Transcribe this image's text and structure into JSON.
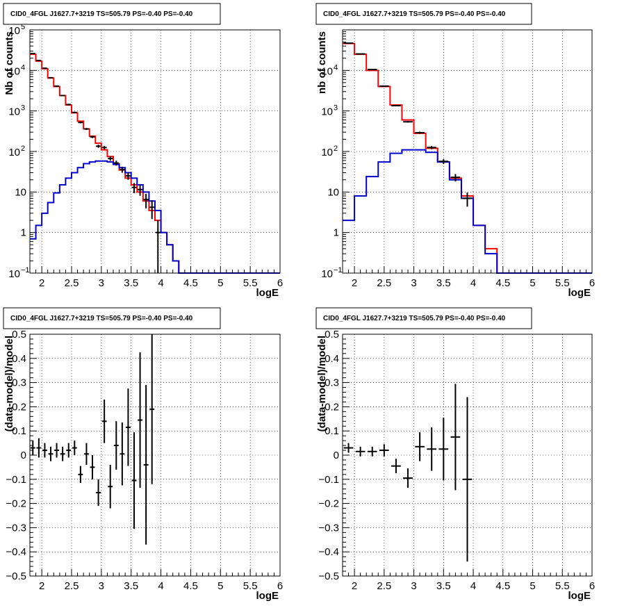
{
  "chart_data": [
    {
      "type": "line",
      "title": "CID0_4FGL J1627.7+3219 TS=505.79 PS=-0.40 PS=-0.40",
      "xlabel": "logE",
      "ylabel": "Nb of counts",
      "log_y": true,
      "xlim": [
        1.8,
        6.0
      ],
      "ylim": [
        0.1,
        100000
      ],
      "x_ticks": [
        "2",
        "2.5",
        "3",
        "3.5",
        "4",
        "4.5",
        "5",
        "5.5",
        "6"
      ],
      "y_ticks": [
        "10^-1",
        "1",
        "10",
        "10^2",
        "10^3",
        "10^4",
        "10^5"
      ],
      "grid": true,
      "bin_edges": [
        1.8,
        1.9,
        2.0,
        2.1,
        2.2,
        2.3,
        2.4,
        2.5,
        2.6,
        2.7,
        2.8,
        2.9,
        3.0,
        3.1,
        3.2,
        3.3,
        3.4,
        3.5,
        3.6,
        3.7,
        3.8,
        3.9,
        4.0,
        4.1,
        4.2,
        4.3,
        4.4,
        6.0
      ],
      "series": [
        {
          "color": "#ff0000",
          "style": "step",
          "values": [
            25000,
            17000,
            11000,
            6500,
            4000,
            2400,
            1400,
            900,
            560,
            360,
            240,
            160,
            110,
            75,
            50,
            35,
            22,
            15,
            10,
            6,
            3.5,
            2,
            1,
            0.5,
            0.2,
            0.1,
            0.1
          ]
        },
        {
          "color": "#0000cc",
          "style": "step",
          "values": [
            0.7,
            1.5,
            3,
            5.5,
            9.5,
            15,
            22,
            30,
            40,
            50,
            55,
            58,
            58,
            55,
            48,
            40,
            30,
            22,
            15,
            10,
            6,
            3.5,
            1,
            0.5,
            0.2,
            0.1,
            0.1
          ]
        },
        {
          "color": "#000000",
          "style": "errorbar",
          "x": [
            1.85,
            1.95,
            2.05,
            2.15,
            2.25,
            2.35,
            2.45,
            2.55,
            2.65,
            2.75,
            2.85,
            2.95,
            3.05,
            3.15,
            3.25,
            3.35,
            3.45,
            3.55,
            3.65,
            3.75,
            3.85,
            3.95
          ],
          "y": [
            26000,
            17500,
            11300,
            6600,
            4100,
            2400,
            1440,
            920,
            520,
            360,
            230,
            135,
            125,
            67,
            52,
            36,
            25,
            13,
            11.5,
            6.5,
            4.2,
            1
          ]
        }
      ]
    },
    {
      "type": "line",
      "title": "CID0_4FGL J1627.7+3219 TS=505.79 PS=-0.40 PS=-0.40",
      "xlabel": "logE",
      "ylabel": "nb of counts",
      "log_y": true,
      "xlim": [
        1.8,
        6.0
      ],
      "ylim": [
        0.1,
        100000
      ],
      "x_ticks": [
        "2",
        "2.5",
        "3",
        "3.5",
        "4",
        "4.5",
        "5",
        "5.5",
        "6"
      ],
      "y_ticks": [
        "10^-1",
        "1",
        "10",
        "10^2",
        "10^3",
        "10^4"
      ],
      "grid": true,
      "bin_edges": [
        1.8,
        2.0,
        2.2,
        2.4,
        2.6,
        2.8,
        3.0,
        3.2,
        3.4,
        3.6,
        3.8,
        4.0,
        4.2,
        4.4,
        6.0
      ],
      "series": [
        {
          "color": "#ff0000",
          "style": "step",
          "values": [
            46000,
            25000,
            10000,
            4000,
            1400,
            600,
            280,
            120,
            55,
            22,
            8,
            1.5,
            0.4,
            0.1
          ]
        },
        {
          "color": "#0000cc",
          "style": "step",
          "values": [
            2,
            8,
            24,
            55,
            90,
            110,
            110,
            95,
            55,
            20,
            7,
            1.5,
            0.3,
            0.1
          ]
        },
        {
          "color": "#000000",
          "style": "errorbar",
          "x": [
            1.9,
            2.1,
            2.3,
            2.5,
            2.7,
            2.9,
            3.1,
            3.3,
            3.5,
            3.7,
            3.9
          ],
          "y": [
            47000,
            25500,
            10500,
            4100,
            1350,
            540,
            290,
            125,
            57,
            23,
            7
          ]
        }
      ]
    },
    {
      "type": "scatter",
      "title": "CID0_4FGL J1627.7+3219 TS=505.79 PS=-0.40 PS=-0.40",
      "xlabel": "logE",
      "ylabel": "(data-model)/model",
      "xlim": [
        1.8,
        6.0
      ],
      "ylim": [
        -0.5,
        0.5
      ],
      "x_ticks": [
        "2",
        "2.5",
        "3",
        "3.5",
        "4",
        "4.5",
        "5",
        "5.5",
        "6"
      ],
      "y_ticks": [
        "-0.5",
        "-0.4",
        "-0.3",
        "-0.2",
        "-0.1",
        "0",
        "0.1",
        "0.2",
        "0.3",
        "0.4",
        "0.5"
      ],
      "grid": true,
      "bin_width": 0.1,
      "series": [
        {
          "color": "#000000",
          "style": "errorbar",
          "x": [
            1.85,
            1.95,
            2.05,
            2.15,
            2.25,
            2.35,
            2.45,
            2.55,
            2.65,
            2.75,
            2.85,
            2.95,
            3.05,
            3.15,
            3.25,
            3.35,
            3.45,
            3.55,
            3.65,
            3.75,
            3.85
          ],
          "y": [
            0.03,
            0.03,
            0.02,
            0.005,
            0.02,
            0.005,
            0.02,
            0.03,
            -0.08,
            0.005,
            -0.05,
            -0.155,
            0.14,
            -0.13,
            0.04,
            0.005,
            0.115,
            -0.105,
            0.145,
            -0.04,
            0.19
          ],
          "err": [
            0.03,
            0.04,
            0.03,
            0.03,
            0.03,
            0.03,
            0.03,
            0.03,
            0.035,
            0.045,
            0.05,
            0.055,
            0.09,
            0.09,
            0.1,
            0.13,
            0.16,
            0.2,
            0.28,
            0.33,
            0.31
          ]
        }
      ]
    },
    {
      "type": "scatter",
      "title": "CID0_4FGL J1627.7+3219 TS=505.79 PS=-0.40 PS=-0.40",
      "xlabel": "logE",
      "ylabel": "(data-model)/model",
      "xlim": [
        1.8,
        6.0
      ],
      "ylim": [
        -0.5,
        0.5
      ],
      "x_ticks": [
        "2",
        "2.5",
        "3",
        "3.5",
        "4",
        "4.5",
        "5",
        "5.5",
        "6"
      ],
      "y_ticks": [
        "-0.5",
        "-0.4",
        "-0.3",
        "-0.2",
        "-0.1",
        "0",
        "0.1",
        "0.2",
        "0.3",
        "0.4",
        "0.5"
      ],
      "grid": true,
      "bin_width": 0.2,
      "series": [
        {
          "color": "#000000",
          "style": "errorbar",
          "x": [
            1.9,
            2.1,
            2.3,
            2.5,
            2.7,
            2.9,
            3.1,
            3.3,
            3.5,
            3.7,
            3.9
          ],
          "y": [
            0.03,
            0.015,
            0.015,
            0.02,
            -0.045,
            -0.095,
            0.035,
            0.025,
            0.025,
            0.075,
            -0.1
          ],
          "err": [
            0.02,
            0.02,
            0.02,
            0.025,
            0.03,
            0.04,
            0.06,
            0.09,
            0.13,
            0.22,
            0.34
          ]
        }
      ]
    }
  ]
}
